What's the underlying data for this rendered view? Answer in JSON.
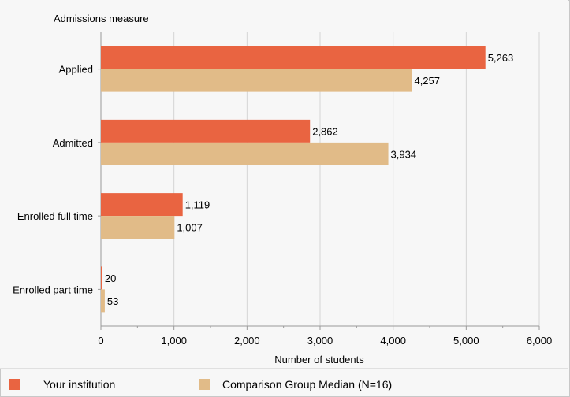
{
  "chart_data": {
    "type": "bar",
    "orientation": "horizontal",
    "title": "",
    "ylabel": "Admissions measure",
    "xlabel": "Number of students",
    "categories": [
      "Applied",
      "Admitted",
      "Enrolled full time",
      "Enrolled part time"
    ],
    "series": [
      {
        "name": "Your institution",
        "color": "#e96441",
        "values": [
          5263,
          2862,
          1119,
          20
        ],
        "labels": [
          "5,263",
          "2,862",
          "1,119",
          "20"
        ]
      },
      {
        "name": "Comparison Group Median (N=16)",
        "color": "#e1bb88",
        "values": [
          4257,
          3934,
          1007,
          53
        ],
        "labels": [
          "4,257",
          "3,934",
          "1,007",
          "53"
        ]
      }
    ],
    "xlim": [
      0,
      6000
    ],
    "xticks": [
      0,
      1000,
      2000,
      3000,
      4000,
      5000,
      6000
    ],
    "xtick_labels": [
      "0",
      "1,000",
      "2,000",
      "3,000",
      "4,000",
      "5,000",
      "6,000"
    ],
    "grid": true,
    "legend_position": "bottom"
  }
}
